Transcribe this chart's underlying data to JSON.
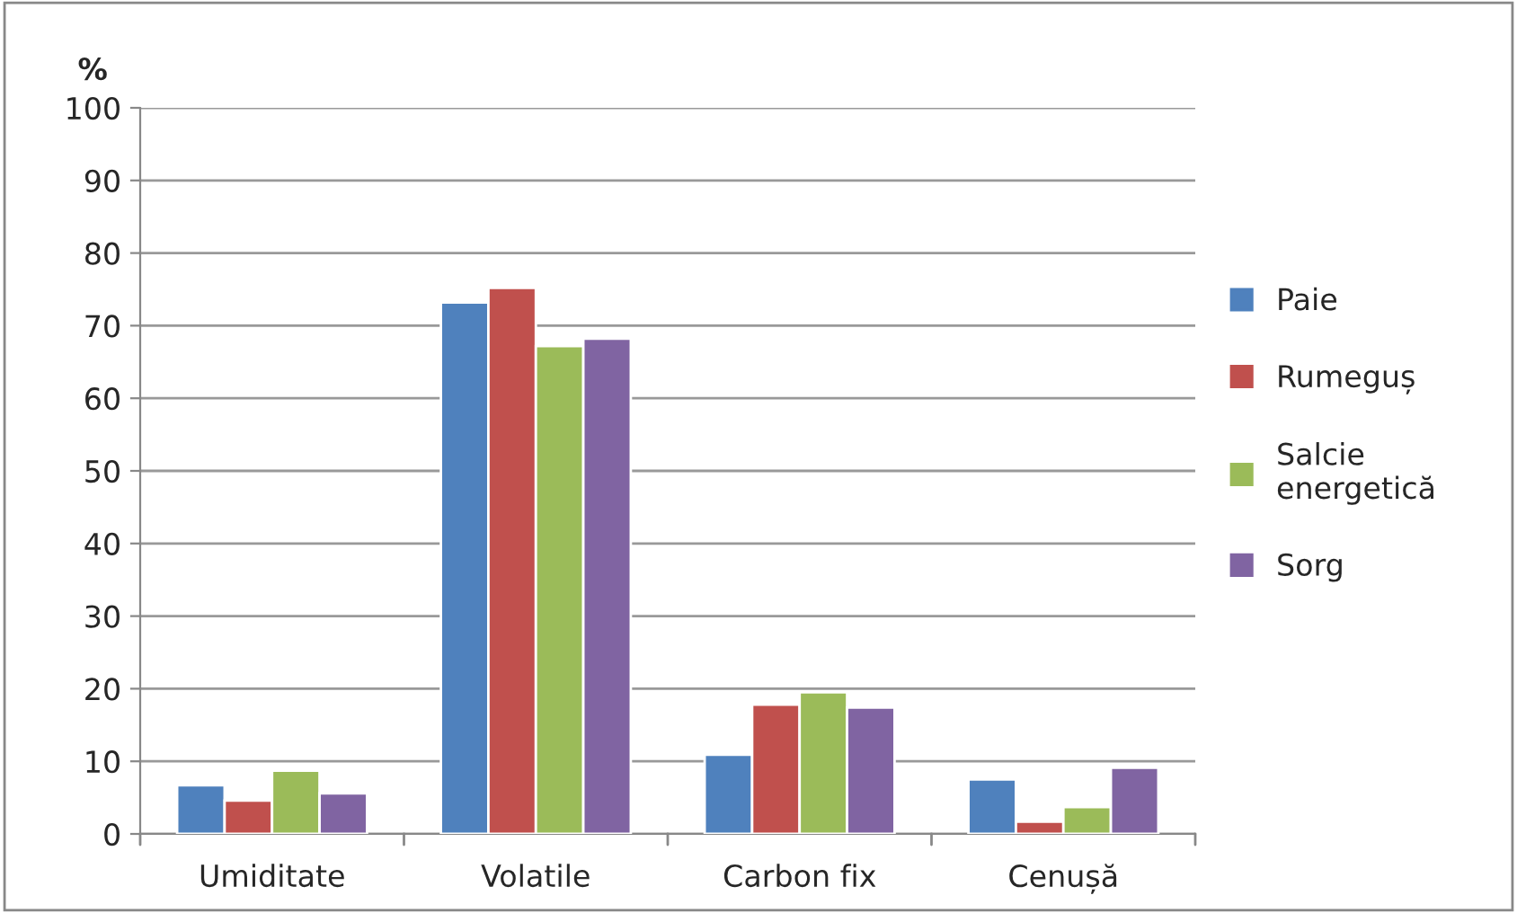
{
  "chart_data": {
    "type": "bar",
    "ylabel": "%",
    "categories": [
      "Umiditate",
      "Volatile",
      "Carbon fix",
      "Cenușă"
    ],
    "series": [
      {
        "name": "Paie",
        "color": "#4f81bd",
        "values": [
          6.7,
          73.2,
          10.9,
          7.5
        ]
      },
      {
        "name": "Rumeguș",
        "color": "#c0504d",
        "values": [
          4.6,
          75.2,
          17.8,
          1.7
        ]
      },
      {
        "name": "Salcie energetică",
        "color": "#9bbb59",
        "values": [
          8.7,
          67.2,
          19.5,
          3.7
        ]
      },
      {
        "name": "Sorg",
        "color": "#8064a2",
        "values": [
          5.6,
          68.2,
          17.4,
          9.1
        ]
      }
    ],
    "ylim": [
      0,
      100
    ],
    "yticks": [
      0,
      10,
      20,
      30,
      40,
      50,
      60,
      70,
      80,
      90,
      100
    ],
    "grid": "y",
    "legend": "right"
  }
}
